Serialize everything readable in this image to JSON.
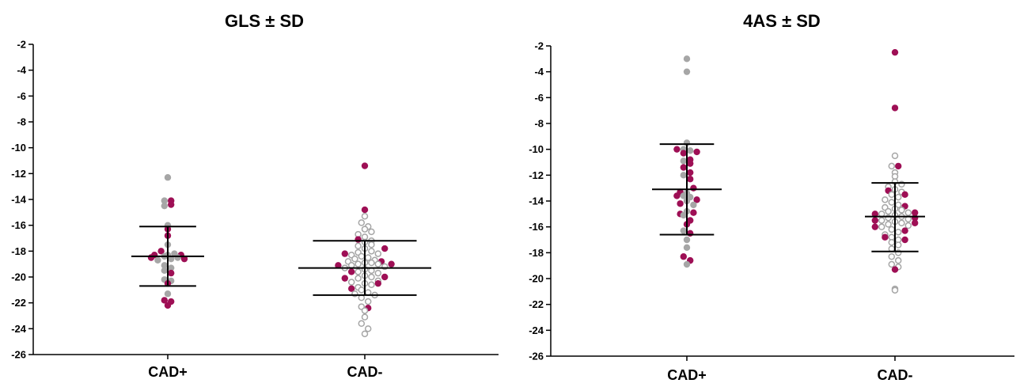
{
  "colors": {
    "cad_pos_highlight": "#9e0f55",
    "cad_pos_other": "#a6a6a6",
    "cad_neg_open_stroke": "#a6a6a6",
    "axis": "#000000",
    "sd_bars": "#000000"
  },
  "chart_data": [
    {
      "type": "scatter",
      "subtype": "dot-plot-mean-sd",
      "title": "GLS ± SD",
      "categories": [
        "CAD+",
        "CAD-"
      ],
      "ylim": [
        -26,
        -2
      ],
      "yticks": [
        -2,
        -4,
        -6,
        -8,
        -10,
        -12,
        -14,
        -16,
        -18,
        -20,
        -22,
        -24,
        -26
      ],
      "summary": [
        {
          "category": "CAD+",
          "mean": -18.4,
          "sd_upper": -16.1,
          "sd_lower": -20.7
        },
        {
          "category": "CAD-",
          "mean": -19.3,
          "sd_upper": -17.2,
          "sd_lower": -21.4
        }
      ],
      "series": [
        {
          "category": "CAD+",
          "marker": "filled-highlight",
          "values": [
            -14.1,
            -14.4,
            -16.3,
            -16.8,
            -18.0,
            -18.3,
            -18.5,
            -18.3,
            -18.6,
            -19.7,
            -20.5,
            -21.8,
            -21.9,
            -22.2
          ]
        },
        {
          "category": "CAD+",
          "marker": "filled-gray",
          "values": [
            -12.3,
            -14.1,
            -14.5,
            -16.0,
            -17.5,
            -18.3,
            -18.4,
            -18.6,
            -18.7,
            -19.1,
            -19.3,
            -19.5,
            -20.2,
            -20.3,
            -21.3,
            -18.5,
            -18.2
          ]
        },
        {
          "category": "CAD-",
          "marker": "filled-highlight",
          "values": [
            -11.4,
            -14.8,
            -17.1,
            -17.8,
            -18.2,
            -18.8,
            -19.0,
            -19.1,
            -19.6,
            -20.0,
            -20.1,
            -20.5,
            -20.9,
            -22.4
          ]
        },
        {
          "category": "CAD-",
          "marker": "open-gray",
          "values": [
            -15.3,
            -15.8,
            -16.1,
            -16.3,
            -16.5,
            -16.7,
            -16.9,
            -17.2,
            -17.3,
            -17.5,
            -17.6,
            -17.8,
            -18.0,
            -18.1,
            -18.2,
            -18.3,
            -18.4,
            -18.5,
            -18.6,
            -18.7,
            -18.8,
            -18.9,
            -18.9,
            -19.0,
            -19.0,
            -19.1,
            -19.2,
            -19.3,
            -19.4,
            -19.5,
            -19.6,
            -19.7,
            -19.9,
            -20.0,
            -20.1,
            -20.3,
            -20.4,
            -20.5,
            -20.6,
            -20.8,
            -21.0,
            -21.2,
            -21.3,
            -21.4,
            -21.6,
            -21.9,
            -22.3,
            -22.6,
            -23.1,
            -23.6,
            -24.0,
            -24.4
          ]
        }
      ]
    },
    {
      "type": "scatter",
      "subtype": "dot-plot-mean-sd",
      "title": "4AS ± SD",
      "categories": [
        "CAD+",
        "CAD-"
      ],
      "ylim": [
        -26,
        -2
      ],
      "yticks": [
        -2,
        -4,
        -6,
        -8,
        -10,
        -12,
        -14,
        -16,
        -18,
        -20,
        -22,
        -24,
        -26
      ],
      "summary": [
        {
          "category": "CAD+",
          "mean": -13.1,
          "sd_upper": -9.6,
          "sd_lower": -16.6
        },
        {
          "category": "CAD-",
          "mean": -15.2,
          "sd_upper": -12.6,
          "sd_lower": -17.9
        }
      ],
      "series": [
        {
          "category": "CAD+",
          "marker": "filled-highlight",
          "values": [
            -10.0,
            -10.2,
            -10.3,
            -10.8,
            -11.1,
            -11.4,
            -11.8,
            -12.3,
            -13.0,
            -13.3,
            -13.6,
            -13.9,
            -14.2,
            -14.9,
            -15.0,
            -15.5,
            -15.8,
            -16.5,
            -18.3,
            -18.6
          ]
        },
        {
          "category": "CAD+",
          "marker": "filled-gray",
          "values": [
            -3.0,
            -4.0,
            -9.5,
            -10.0,
            -10.1,
            -10.9,
            -12.0,
            -13.4,
            -13.6,
            -13.7,
            -14.0,
            -14.3,
            -14.8,
            -15.1,
            -16.3,
            -17.0,
            -17.6,
            -18.9
          ]
        },
        {
          "category": "CAD-",
          "marker": "filled-highlight",
          "values": [
            -2.5,
            -6.8,
            -11.3,
            -13.2,
            -13.5,
            -14.4,
            -14.9,
            -15.0,
            -15.3,
            -15.5,
            -15.7,
            -16.0,
            -16.3,
            -16.8,
            -17.0,
            -19.3
          ]
        },
        {
          "category": "CAD-",
          "marker": "open-gray",
          "values": [
            -10.5,
            -11.3,
            -11.8,
            -12.1,
            -12.5,
            -12.7,
            -12.9,
            -13.1,
            -13.3,
            -13.5,
            -13.7,
            -13.9,
            -14.1,
            -14.3,
            -14.5,
            -14.6,
            -14.7,
            -14.8,
            -14.9,
            -15.0,
            -15.1,
            -15.2,
            -15.3,
            -15.4,
            -15.5,
            -15.6,
            -15.7,
            -15.8,
            -15.9,
            -16.0,
            -16.2,
            -16.4,
            -16.6,
            -16.8,
            -17.0,
            -17.2,
            -17.4,
            -17.7,
            -18.0,
            -18.3,
            -18.6,
            -18.9,
            -19.1,
            -20.8,
            -20.9
          ]
        }
      ]
    }
  ]
}
